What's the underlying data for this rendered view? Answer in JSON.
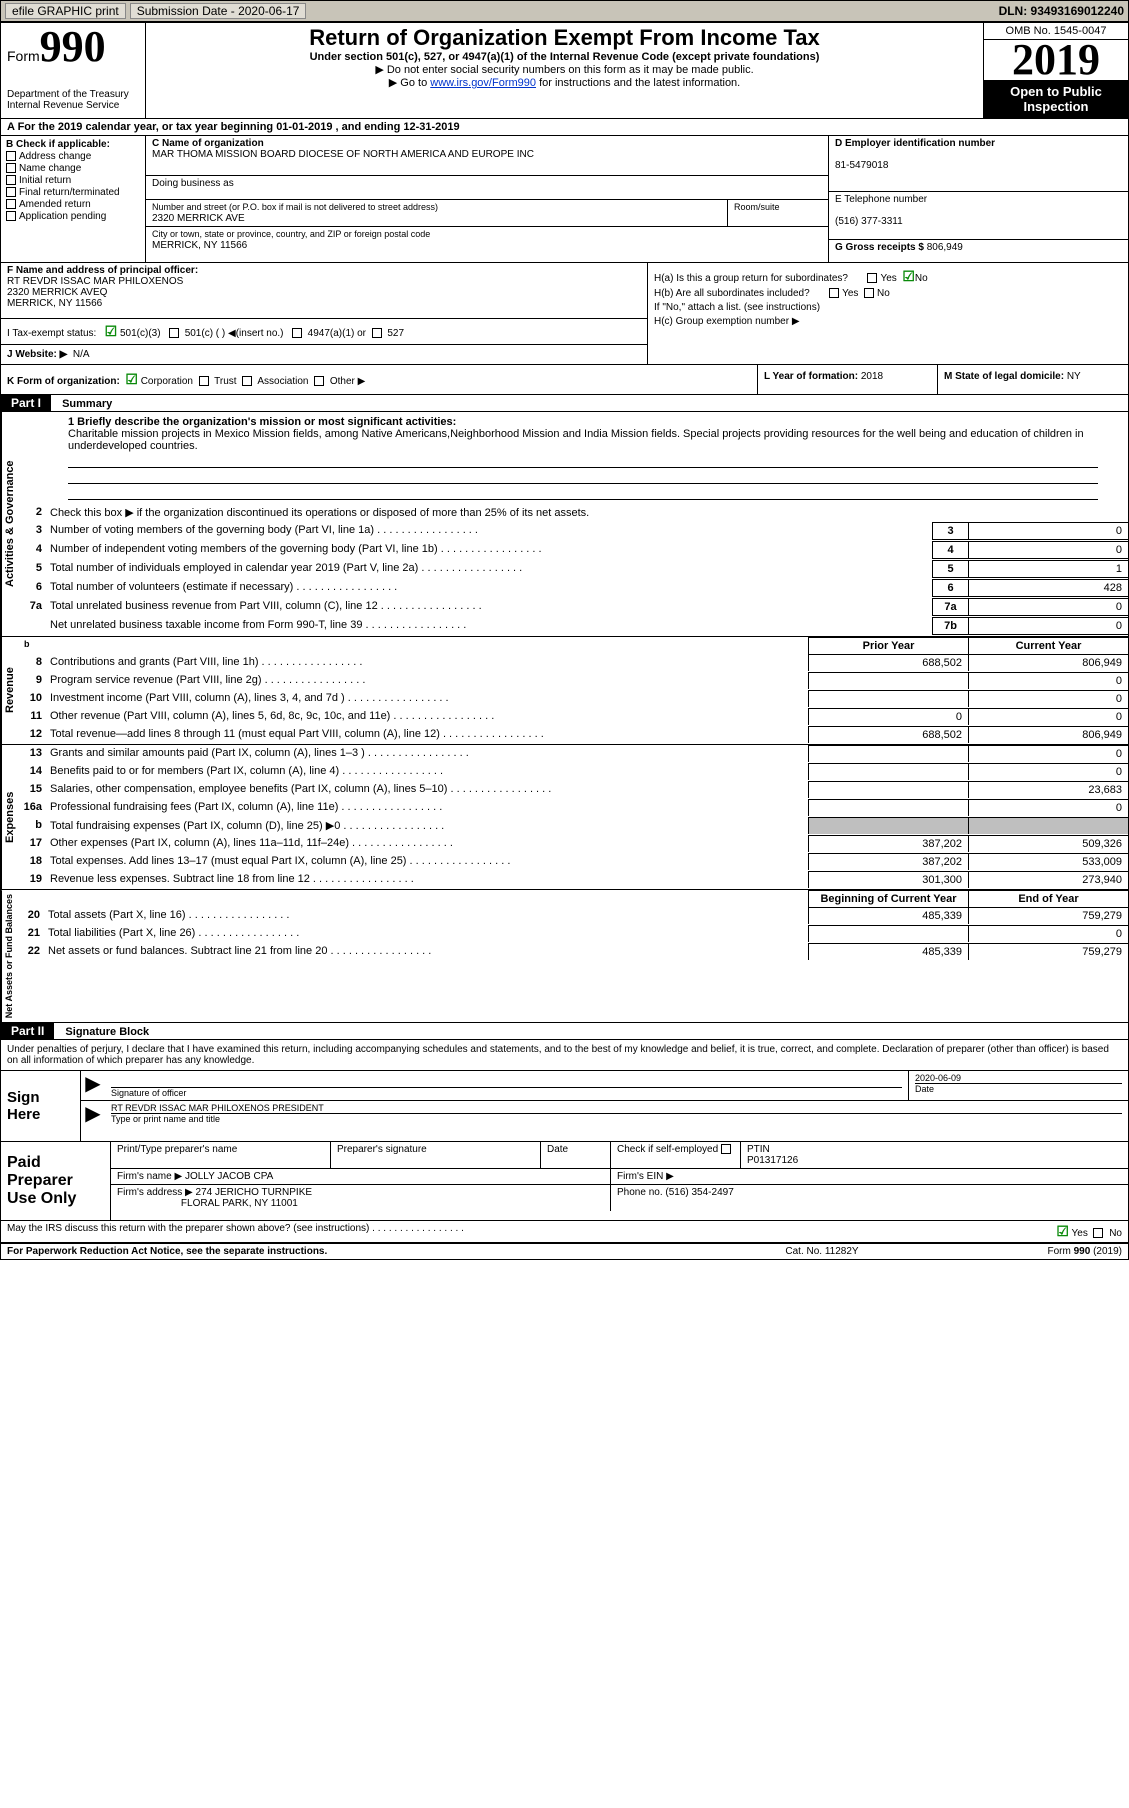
{
  "topbar": {
    "efile": "efile GRAPHIC print",
    "submission_label": "Submission Date - 2020-06-17",
    "dln": "DLN: 93493169012240"
  },
  "header": {
    "form_word": "Form",
    "form_number": "990",
    "dept": "Department of the Treasury\nInternal Revenue Service",
    "title": "Return of Organization Exempt From Income Tax",
    "subtitle": "Under section 501(c), 527, or 4947(a)(1) of the Internal Revenue Code (except private foundations)",
    "note1": "▶ Do not enter social security numbers on this form as it may be made public.",
    "note2_pre": "▶ Go to ",
    "note2_link": "www.irs.gov/Form990",
    "note2_post": " for instructions and the latest information.",
    "omb": "OMB No. 1545-0047",
    "year": "2019",
    "open": "Open to Public Inspection"
  },
  "row_a": "A   For the 2019 calendar year, or tax year beginning 01-01-2019   , and ending 12-31-2019",
  "col_b": {
    "title": "B Check if applicable:",
    "opts": [
      "Address change",
      "Name change",
      "Initial return",
      "Final return/terminated",
      "Amended return",
      "Application pending"
    ]
  },
  "org": {
    "name_lbl": "C Name of organization",
    "name": "MAR THOMA MISSION BOARD DIOCESE OF NORTH AMERICA AND EUROPE INC",
    "dba_lbl": "Doing business as",
    "street_lbl": "Number and street (or P.O. box if mail is not delivered to street address)",
    "street": "2320 MERRICK AVE",
    "room_lbl": "Room/suite",
    "city_lbl": "City or town, state or province, country, and ZIP or foreign postal code",
    "city": "MERRICK, NY  11566"
  },
  "right": {
    "ein_lbl": "D Employer identification number",
    "ein": "81-5479018",
    "tel_lbl": "E Telephone number",
    "tel": "(516) 377-3311",
    "gross_lbl": "G Gross receipts $ ",
    "gross": "806,949"
  },
  "f": {
    "lbl": "F  Name and address of principal officer:",
    "name": "RT REVDR ISSAC MAR PHILOXENOS",
    "addr": "2320 MERRICK AVEQ",
    "city": "MERRICK, NY  11566"
  },
  "h": {
    "a": "H(a)  Is this a group return for subordinates?",
    "a_yes": "Yes",
    "a_no": "No",
    "b": "H(b)  Are all subordinates included?",
    "b_yes": "Yes",
    "b_no": "No",
    "b_note": "If \"No,\" attach a list. (see instructions)",
    "c": "H(c)  Group exemption number ▶"
  },
  "i": {
    "lbl": "I   Tax-exempt status:",
    "o1": "501(c)(3)",
    "o2": "501(c) (  ) ◀(insert no.)",
    "o3": "4947(a)(1) or",
    "o4": "527"
  },
  "j": {
    "lbl": "J   Website: ▶",
    "val": "N/A"
  },
  "k": {
    "lbl": "K Form of organization:",
    "opts": [
      "Corporation",
      "Trust",
      "Association",
      "Other ▶"
    ]
  },
  "l": {
    "lbl": "L Year of formation: ",
    "val": "2018"
  },
  "m": {
    "lbl": "M State of legal domicile: ",
    "val": "NY"
  },
  "part1": {
    "num": "Part I",
    "title": "Summary"
  },
  "mission": {
    "lbl": "1   Briefly describe the organization's mission or most significant activities:",
    "text": "Charitable mission projects in Mexico Mission fields, among Native Americans,Neighborhood Mission and India Mission fields. Special projects providing resources for the well being and education of children in underdeveloped countries."
  },
  "gov": {
    "label": "Activities & Governance",
    "l2": "Check this box ▶       if the organization discontinued its operations or disposed of more than 25% of its net assets.",
    "rows": [
      {
        "n": "3",
        "t": "Number of voting members of the governing body (Part VI, line 1a)",
        "c": "3",
        "v": "0"
      },
      {
        "n": "4",
        "t": "Number of independent voting members of the governing body (Part VI, line 1b)",
        "c": "4",
        "v": "0"
      },
      {
        "n": "5",
        "t": "Total number of individuals employed in calendar year 2019 (Part V, line 2a)",
        "c": "5",
        "v": "1"
      },
      {
        "n": "6",
        "t": "Total number of volunteers (estimate if necessary)",
        "c": "6",
        "v": "428"
      },
      {
        "n": "7a",
        "t": "Total unrelated business revenue from Part VIII, column (C), line 12",
        "c": "7a",
        "v": "0"
      },
      {
        "n": "",
        "t": "Net unrelated business taxable income from Form 990-T, line 39",
        "c": "7b",
        "v": "0"
      }
    ]
  },
  "hdr2": {
    "prior": "Prior Year",
    "curr": "Current Year"
  },
  "rev": {
    "label": "Revenue",
    "rows": [
      {
        "n": "8",
        "t": "Contributions and grants (Part VIII, line 1h)",
        "p": "688,502",
        "c": "806,949"
      },
      {
        "n": "9",
        "t": "Program service revenue (Part VIII, line 2g)",
        "p": "",
        "c": "0"
      },
      {
        "n": "10",
        "t": "Investment income (Part VIII, column (A), lines 3, 4, and 7d )",
        "p": "",
        "c": "0"
      },
      {
        "n": "11",
        "t": "Other revenue (Part VIII, column (A), lines 5, 6d, 8c, 9c, 10c, and 11e)",
        "p": "0",
        "c": "0"
      },
      {
        "n": "12",
        "t": "Total revenue—add lines 8 through 11 (must equal Part VIII, column (A), line 12)",
        "p": "688,502",
        "c": "806,949"
      }
    ]
  },
  "exp": {
    "label": "Expenses",
    "rows": [
      {
        "n": "13",
        "t": "Grants and similar amounts paid (Part IX, column (A), lines 1–3 )",
        "p": "",
        "c": "0"
      },
      {
        "n": "14",
        "t": "Benefits paid to or for members (Part IX, column (A), line 4)",
        "p": "",
        "c": "0"
      },
      {
        "n": "15",
        "t": "Salaries, other compensation, employee benefits (Part IX, column (A), lines 5–10)",
        "p": "",
        "c": "23,683"
      },
      {
        "n": "16a",
        "t": "Professional fundraising fees (Part IX, column (A), line 11e)",
        "p": "",
        "c": "0"
      },
      {
        "n": "b",
        "t": "Total fundraising expenses (Part IX, column (D), line 25) ▶0",
        "p": "SHADE",
        "c": "SHADE"
      },
      {
        "n": "17",
        "t": "Other expenses (Part IX, column (A), lines 11a–11d, 11f–24e)",
        "p": "387,202",
        "c": "509,326"
      },
      {
        "n": "18",
        "t": "Total expenses. Add lines 13–17 (must equal Part IX, column (A), line 25)",
        "p": "387,202",
        "c": "533,009"
      },
      {
        "n": "19",
        "t": "Revenue less expenses. Subtract line 18 from line 12",
        "p": "301,300",
        "c": "273,940"
      }
    ]
  },
  "net": {
    "label": "Net Assets or Fund Balances",
    "hdr_p": "Beginning of Current Year",
    "hdr_c": "End of Year",
    "rows": [
      {
        "n": "20",
        "t": "Total assets (Part X, line 16)",
        "p": "485,339",
        "c": "759,279"
      },
      {
        "n": "21",
        "t": "Total liabilities (Part X, line 26)",
        "p": "",
        "c": "0"
      },
      {
        "n": "22",
        "t": "Net assets or fund balances. Subtract line 21 from line 20",
        "p": "485,339",
        "c": "759,279"
      }
    ]
  },
  "part2": {
    "num": "Part II",
    "title": "Signature Block"
  },
  "penalty": "Under penalties of perjury, I declare that I have examined this return, including accompanying schedules and statements, and to the best of my knowledge and belief, it is true, correct, and complete. Declaration of preparer (other than officer) is based on all information of which preparer has any knowledge.",
  "sign": {
    "here": "Sign Here",
    "sig_lbl": "Signature of officer",
    "date_lbl": "Date",
    "date": "2020-06-09",
    "name": "RT REVDR ISSAC MAR PHILOXENOS  PRESIDENT",
    "name_lbl": "Type or print name and title"
  },
  "prep": {
    "title": "Paid Preparer Use Only",
    "pname_lbl": "Print/Type preparer's name",
    "psig_lbl": "Preparer's signature",
    "pdate_lbl": "Date",
    "pcheck_lbl": "Check       if self-employed",
    "pptin_lbl": "PTIN",
    "pptin": "P01317126",
    "firm_lbl": "Firm's name    ▶ ",
    "firm": "JOLLY JACOB CPA",
    "ein_lbl": "Firm's EIN ▶",
    "addr_lbl": "Firm's address ▶ ",
    "addr1": "274 JERICHO TURNPIKE",
    "addr2": "FLORAL PARK, NY  11001",
    "phone_lbl": "Phone no. ",
    "phone": "(516) 354-2497"
  },
  "discuss": {
    "q": "May the IRS discuss this return with the preparer shown above? (see instructions)",
    "yes": "Yes",
    "no": "No"
  },
  "footer": {
    "a": "For Paperwork Reduction Act Notice, see the separate instructions.",
    "b": "Cat. No. 11282Y",
    "c": "Form 990 (2019)"
  }
}
